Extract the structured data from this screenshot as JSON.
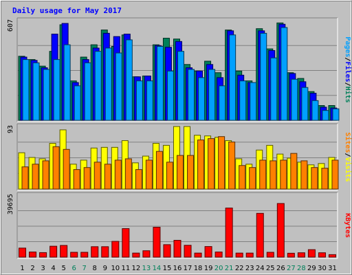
{
  "chart_data": {
    "type": "bar",
    "title": "Daily usage for May 2017",
    "categories": [
      "1",
      "2",
      "3",
      "4",
      "5",
      "6",
      "7",
      "8",
      "9",
      "10",
      "11",
      "12",
      "13",
      "14",
      "15",
      "16",
      "17",
      "18",
      "19",
      "20",
      "21",
      "22",
      "23",
      "24",
      "25",
      "26",
      "27",
      "28",
      "29",
      "30",
      "31"
    ],
    "weekend_days": [
      "6",
      "7",
      "13",
      "14",
      "20",
      "21",
      "27",
      "28"
    ],
    "panels": [
      {
        "name": "hits-files-pages",
        "ymax": 607,
        "ymax_label": "607",
        "side_label": [
          "Pages",
          "/",
          "Files",
          "/",
          "Hits"
        ],
        "side_colors": [
          "#00a0ff",
          "#000000",
          "#0000ff",
          "#000000",
          "#00805a"
        ],
        "series": [
          {
            "name": "Hits",
            "color": "#00805a",
            "values": [
              390,
              370,
              330,
              420,
              582,
              240,
              385,
              460,
              550,
              450,
              520,
              265,
              270,
              460,
              500,
              495,
              340,
              300,
              360,
              290,
              550,
              300,
              240,
              558,
              435,
              593,
              290,
              255,
              175,
              90,
              90
            ]
          },
          {
            "name": "Files",
            "color": "#0000ff",
            "values": [
              385,
              365,
              320,
              525,
              590,
              230,
              370,
              440,
              530,
              510,
              525,
              265,
              270,
              455,
              445,
              480,
              320,
              300,
              340,
              260,
              545,
              275,
              230,
              545,
              425,
              585,
              285,
              235,
              165,
              80,
              75
            ]
          },
          {
            "name": "Pages",
            "color": "#00a0ff",
            "values": [
              370,
              350,
              310,
              370,
              460,
              210,
              350,
              420,
              440,
              410,
              490,
              240,
              240,
              450,
              300,
              420,
              310,
              260,
              310,
              210,
              520,
              240,
              230,
              530,
              380,
              565,
              250,
              200,
              120,
              60,
              70
            ]
          }
        ]
      },
      {
        "name": "visits-sites",
        "ymax": 93,
        "ymax_label": "93",
        "side_label": [
          "Sites",
          "/",
          "Visits"
        ],
        "side_colors": [
          "#ff8000",
          "#000000",
          "#ffff00"
        ],
        "series": [
          {
            "name": "Visits",
            "color": "#ffff00",
            "values": [
              54,
              47,
              45,
              68,
              88,
              37,
              43,
              61,
              62,
              62,
              72,
              39,
              49,
              68,
              65,
              93,
              93,
              80,
              79,
              77,
              72,
              45,
              37,
              58,
              65,
              52,
              46,
              40,
              36,
              38,
              47
            ]
          },
          {
            "name": "Sites",
            "color": "#ff8000",
            "values": [
              33,
              37,
              42,
              63,
              59,
              29,
              32,
              40,
              37,
              43,
              45,
              29,
              43,
              56,
              40,
              50,
              50,
              73,
              75,
              78,
              70,
              35,
              32,
              43,
              42,
              43,
              53,
              42,
              32,
              31,
              43
            ]
          }
        ]
      },
      {
        "name": "kbytes",
        "ymax": 39695,
        "ymax_label": "39695",
        "side_label": [
          "KBytes"
        ],
        "side_colors": [
          "#ff0000"
        ],
        "series": [
          {
            "name": "KBytes",
            "color": "#ff0000",
            "values": [
              5800,
              3300,
              2900,
              7000,
              7500,
              3100,
              3100,
              6700,
              6700,
              10100,
              18300,
              2600,
              4100,
              19200,
              8000,
              10800,
              7600,
              2600,
              6800,
              3300,
              31500,
              2600,
              2600,
              28100,
              3100,
              34400,
              2500,
              2800,
              4800,
              2800,
              1600
            ]
          }
        ]
      }
    ]
  }
}
